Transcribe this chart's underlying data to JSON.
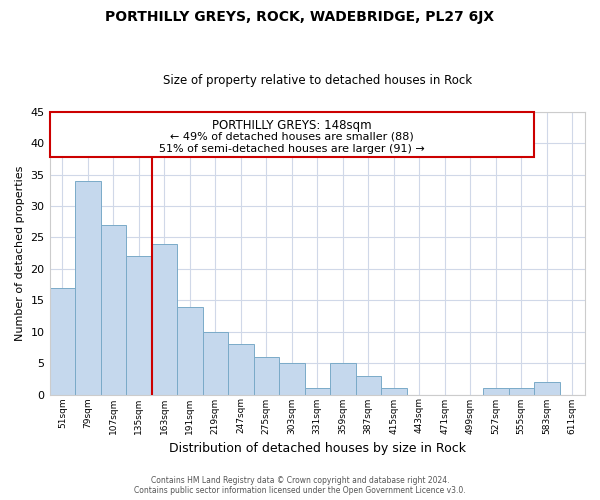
{
  "title": "PORTHILLY GREYS, ROCK, WADEBRIDGE, PL27 6JX",
  "subtitle": "Size of property relative to detached houses in Rock",
  "xlabel": "Distribution of detached houses by size in Rock",
  "ylabel": "Number of detached properties",
  "bins": [
    "51sqm",
    "79sqm",
    "107sqm",
    "135sqm",
    "163sqm",
    "191sqm",
    "219sqm",
    "247sqm",
    "275sqm",
    "303sqm",
    "331sqm",
    "359sqm",
    "387sqm",
    "415sqm",
    "443sqm",
    "471sqm",
    "499sqm",
    "527sqm",
    "555sqm",
    "583sqm",
    "611sqm"
  ],
  "values": [
    17,
    34,
    27,
    22,
    24,
    14,
    10,
    8,
    6,
    5,
    1,
    5,
    3,
    1,
    0,
    0,
    0,
    1,
    1,
    2,
    0
  ],
  "bar_color": "#c5d8ed",
  "bar_edge_color": "#7aaac8",
  "property_line_color": "#cc0000",
  "annotation_title": "PORTHILLY GREYS: 148sqm",
  "annotation_line1": "← 49% of detached houses are smaller (88)",
  "annotation_line2": "51% of semi-detached houses are larger (91) →",
  "annotation_box_color": "#ffffff",
  "annotation_box_edge": "#cc0000",
  "ylim": [
    0,
    45
  ],
  "yticks": [
    0,
    5,
    10,
    15,
    20,
    25,
    30,
    35,
    40,
    45
  ],
  "footer_line1": "Contains HM Land Registry data © Crown copyright and database right 2024.",
  "footer_line2": "Contains public sector information licensed under the Open Government Licence v3.0.",
  "background_color": "#ffffff",
  "grid_color": "#d0d8e8",
  "title_fontsize": 10,
  "subtitle_fontsize": 8.5,
  "ylabel_fontsize": 8,
  "xlabel_fontsize": 9
}
